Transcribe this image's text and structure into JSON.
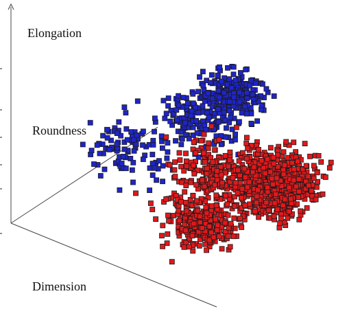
{
  "chart_data": {
    "type": "scatter",
    "projection": "3d",
    "title": "",
    "axes": {
      "x": "Dimension",
      "y": "Roundness",
      "z": "Elongation"
    },
    "grid": false,
    "legend": "none",
    "series": [
      {
        "color": "#1f25c8",
        "marker": "square",
        "approx_points": 500,
        "clusters": [
          {
            "center": [
              0.18,
              0.55,
              0.3
            ],
            "spread": [
              0.1,
              0.08,
              0.1
            ],
            "count": 110
          },
          {
            "center": [
              0.4,
              0.72,
              0.55
            ],
            "spread": [
              0.08,
              0.06,
              0.1
            ],
            "count": 160
          },
          {
            "center": [
              0.52,
              0.8,
              0.78
            ],
            "spread": [
              0.06,
              0.05,
              0.07
            ],
            "count": 230
          }
        ]
      },
      {
        "color": "#e0191c",
        "marker": "square",
        "approx_points": 1200,
        "clusters": [
          {
            "center": [
              0.75,
              0.25,
              0.3
            ],
            "spread": [
              0.06,
              0.06,
              0.08
            ],
            "count": 250
          },
          {
            "center": [
              0.88,
              0.6,
              0.45
            ],
            "spread": [
              0.07,
              0.09,
              0.1
            ],
            "count": 600
          },
          {
            "center": [
              0.7,
              0.45,
              0.5
            ],
            "spread": [
              0.1,
              0.1,
              0.12
            ],
            "count": 350
          }
        ]
      }
    ]
  }
}
